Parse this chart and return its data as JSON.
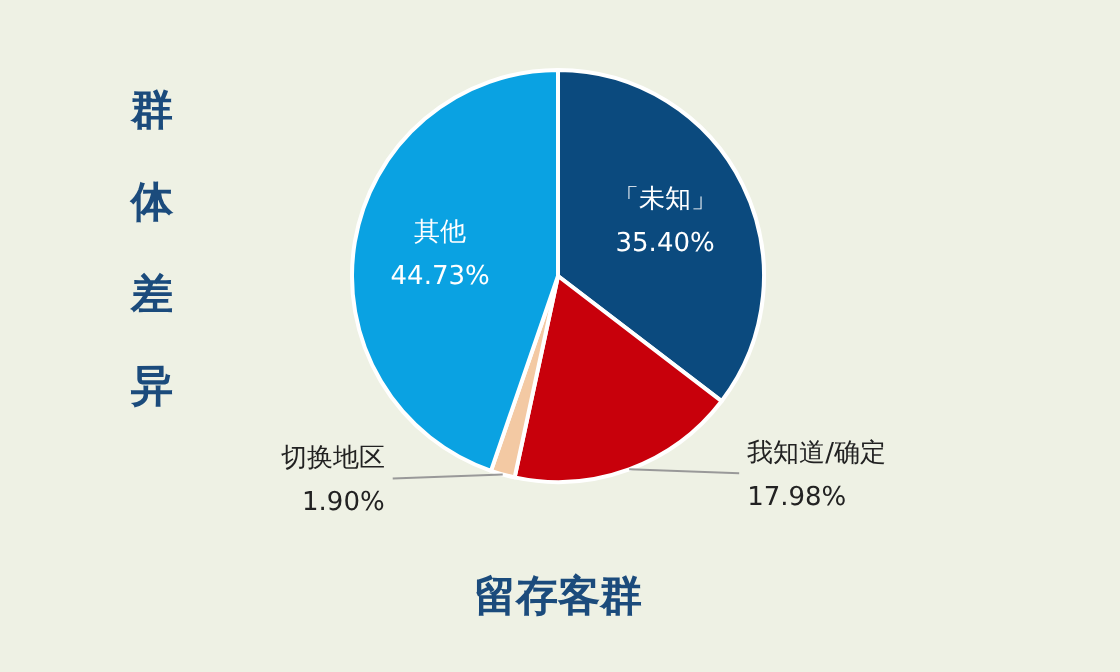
{
  "chart_data": {
    "type": "pie",
    "title": "留存客群",
    "ylabel": "群体差异",
    "categories": [
      "「未知」",
      "我知道/确定",
      "切换地区",
      "其他"
    ],
    "values": [
      35.4,
      17.98,
      1.9,
      44.73
    ],
    "value_labels": [
      "35.40%",
      "17.98%",
      "1.90%",
      "44.73%"
    ],
    "colors": [
      "#0b4a7e",
      "#c8000b",
      "#f3c9a3",
      "#0aa2e2"
    ]
  }
}
